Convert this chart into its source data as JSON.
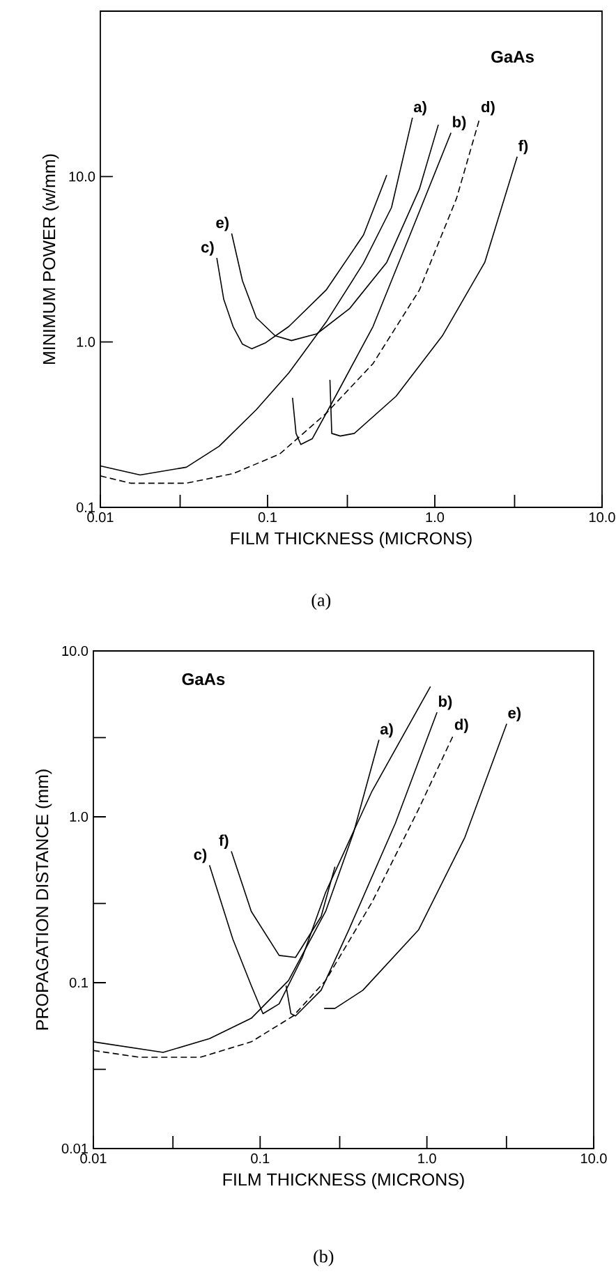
{
  "chart_data": [
    {
      "type": "line",
      "xlabel": "FILM THICKNESS (MICRONS)",
      "ylabel": "MINIMUM POWER (w/mm)",
      "annotations": [
        "GaAs",
        "(a)"
      ],
      "log": "xy",
      "xlim": [
        0.01,
        10
      ],
      "ylim": [
        0.1,
        100
      ],
      "xticks": [
        {
          "value": 0.01,
          "label": "0.01"
        },
        {
          "value": 0.03,
          "label": null
        },
        {
          "value": 0.1,
          "label": "0.1"
        },
        {
          "value": 0.3,
          "label": null
        },
        {
          "value": 1,
          "label": "1.0"
        },
        {
          "value": 3,
          "label": null
        },
        {
          "value": 10,
          "label": "10.0"
        }
      ],
      "yticks": [
        {
          "value": 0.1,
          "label": "0.1"
        },
        {
          "value": 1,
          "label": "1.0"
        },
        {
          "value": 10,
          "label": "10.0"
        }
      ],
      "series": [
        {
          "name": "a)",
          "color": "#000000",
          "line_style": "solid",
          "x": [
            0.01,
            0.0173,
            0.0327,
            0.0513,
            0.0857,
            0.134,
            0.224,
            0.375,
            0.551,
            0.735
          ],
          "values": [
            0.178,
            0.157,
            0.175,
            0.234,
            0.39,
            0.65,
            1.32,
            3.0,
            6.5,
            22.7
          ]
        },
        {
          "name": "b)",
          "color": "#000000",
          "line_style": "solid",
          "x": [
            0.141,
            0.148,
            0.158,
            0.185,
            0.255,
            0.427,
            0.711,
            1.25
          ],
          "values": [
            0.46,
            0.28,
            0.24,
            0.26,
            0.47,
            1.24,
            4.44,
            18.4
          ]
        },
        {
          "name": "c)",
          "color": "#000000",
          "line_style": "solid",
          "x": [
            0.0497,
            0.0547,
            0.0622,
            0.0708,
            0.0804,
            0.0975,
            0.134,
            0.224,
            0.375,
            0.516
          ],
          "values": [
            3.22,
            1.81,
            1.24,
            0.97,
            0.91,
            0.99,
            1.24,
            2.06,
            4.44,
            10.2
          ]
        },
        {
          "name": "d)",
          "color": "#000000",
          "line_style": "dashed",
          "x": [
            0.01,
            0.0152,
            0.0327,
            0.0622,
            0.118,
            0.224,
            0.427,
            0.809,
            1.35,
            1.86
          ],
          "values": [
            0.155,
            0.14,
            0.14,
            0.16,
            0.21,
            0.37,
            0.74,
            2.06,
            7.4,
            22.7
          ]
        },
        {
          "name": "e)",
          "color": "#000000",
          "line_style": "solid",
          "x": [
            0.061,
            0.0708,
            0.0857,
            0.111,
            0.139,
            0.197,
            0.309,
            0.516,
            0.809,
            1.05
          ],
          "values": [
            4.53,
            2.34,
            1.4,
            1.09,
            1.02,
            1.12,
            1.59,
            3.03,
            8.41,
            20.6
          ]
        },
        {
          "name": "f)",
          "color": "#000000",
          "line_style": "solid",
          "x": [
            0.236,
            0.242,
            0.272,
            0.33,
            0.587,
            1.11,
            1.99,
            3.11
          ],
          "values": [
            0.59,
            0.28,
            0.27,
            0.28,
            0.47,
            1.09,
            3.03,
            13.2
          ]
        }
      ]
    },
    {
      "type": "line",
      "xlabel": "FILM THICKNESS (MICRONS)",
      "ylabel": "PROPAGATION DISTANCE (mm)",
      "annotations": [
        "GaAs",
        "(b)"
      ],
      "log": "xy",
      "xlim": [
        0.01,
        10
      ],
      "ylim": [
        0.01,
        10
      ],
      "xticks": [
        {
          "value": 0.01,
          "label": "0.01"
        },
        {
          "value": 0.03,
          "label": null
        },
        {
          "value": 0.1,
          "label": "0.1"
        },
        {
          "value": 0.3,
          "label": null
        },
        {
          "value": 1,
          "label": "1.0"
        },
        {
          "value": 3,
          "label": null
        },
        {
          "value": 10,
          "label": "10.0"
        }
      ],
      "yticks": [
        {
          "value": 0.01,
          "label": "0.01"
        },
        {
          "value": 0.03,
          "label": null
        },
        {
          "value": 0.1,
          "label": "0.1"
        },
        {
          "value": 0.3,
          "label": null
        },
        {
          "value": 1,
          "label": "1.0"
        },
        {
          "value": 3,
          "label": null
        },
        {
          "value": 10,
          "label": "10.0"
        }
      ],
      "series": [
        {
          "name": "a)",
          "color": "#000000",
          "line_style": "solid",
          "x": [
            0.01,
            0.0262,
            0.0497,
            0.0885,
            0.148,
            0.247,
            0.363,
            0.516
          ],
          "values": [
            0.044,
            0.038,
            0.046,
            0.061,
            0.103,
            0.269,
            0.8,
            2.91
          ]
        },
        {
          "name": "b)",
          "color": "#000000",
          "line_style": "solid",
          "x": [
            0.143,
            0.153,
            0.163,
            0.232,
            0.34,
            0.647,
            1.15
          ],
          "values": [
            0.096,
            0.065,
            0.063,
            0.09,
            0.208,
            0.914,
            4.27
          ]
        },
        {
          "name": "c)",
          "color": "#000000",
          "line_style": "solid",
          "x": [
            0.0497,
            0.0686,
            0.0885,
            0.104,
            0.13,
            0.179,
            0.247,
            0.469,
            1.05
          ],
          "values": [
            0.51,
            0.183,
            0.096,
            0.065,
            0.0745,
            0.142,
            0.35,
            1.43,
            6.1
          ]
        },
        {
          "name": "d)",
          "color": "#000000",
          "line_style": "dashed",
          "x": [
            0.01,
            0.019,
            0.0437,
            0.0885,
            0.158,
            0.247,
            0.469,
            0.891,
            1.44
          ],
          "values": [
            0.039,
            0.0355,
            0.0355,
            0.044,
            0.063,
            0.103,
            0.306,
            1.11,
            3.1
          ]
        },
        {
          "name": "e)",
          "color": "#000000",
          "line_style": "solid",
          "x": [
            0.242,
            0.281,
            0.413,
            0.891,
            1.69,
            3.01
          ],
          "values": [
            0.07,
            0.07,
            0.09,
            0.208,
            0.753,
            3.64
          ]
        },
        {
          "name": "f)",
          "color": "#000000",
          "line_style": "solid",
          "x": [
            0.0672,
            0.0885,
            0.13,
            0.163,
            0.232,
            0.281
          ],
          "values": [
            0.62,
            0.269,
            0.146,
            0.142,
            0.25,
            0.5
          ]
        }
      ]
    }
  ]
}
